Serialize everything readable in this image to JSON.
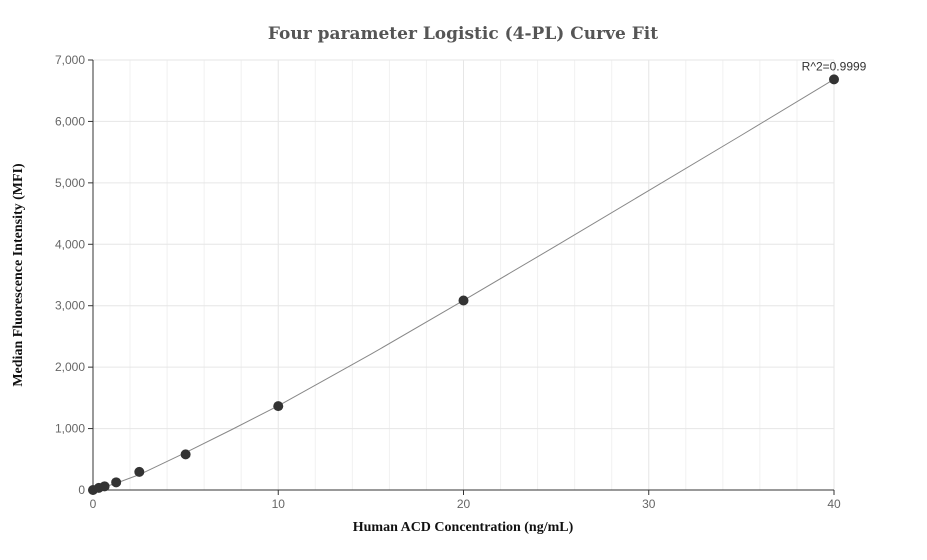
{
  "chart_data": {
    "type": "scatter",
    "title": "Four parameter Logistic (4-PL) Curve Fit",
    "xlabel": "Human ACD Concentration (ng/mL)",
    "ylabel": "Median Fluorescence Intensity (MFI)",
    "xlim": [
      0,
      40
    ],
    "ylim": [
      0,
      7000
    ],
    "x_ticks": [
      0,
      10,
      20,
      30,
      40
    ],
    "x_tick_labels": [
      "0",
      "10",
      "20",
      "30",
      "40"
    ],
    "y_ticks": [
      0,
      1000,
      2000,
      3000,
      4000,
      5000,
      6000,
      7000
    ],
    "y_tick_labels": [
      "0",
      "1,000",
      "2,000",
      "3,000",
      "4,000",
      "5,000",
      "6,000",
      "7,000"
    ],
    "grid": true,
    "points": [
      {
        "x": 0,
        "y": 0
      },
      {
        "x": 0.313,
        "y": 35
      },
      {
        "x": 0.625,
        "y": 60
      },
      {
        "x": 1.25,
        "y": 125
      },
      {
        "x": 2.5,
        "y": 295
      },
      {
        "x": 5,
        "y": 580
      },
      {
        "x": 10,
        "y": 1365
      },
      {
        "x": 20,
        "y": 3085
      },
      {
        "x": 40,
        "y": 6685
      }
    ],
    "fit_curve": {
      "x": [
        0,
        0.625,
        1.25,
        2.5,
        5,
        7.5,
        10,
        15,
        20,
        25,
        30,
        35,
        40
      ],
      "y": [
        0,
        50,
        110,
        250,
        610,
        985,
        1370,
        2210,
        3085,
        3975,
        4875,
        5775,
        6685
      ]
    },
    "annotation": "R^2=0.9999",
    "colors": {
      "point": "#333333",
      "curve": "#888888",
      "grid": "#e6e6e6",
      "axis": "#333333"
    }
  }
}
